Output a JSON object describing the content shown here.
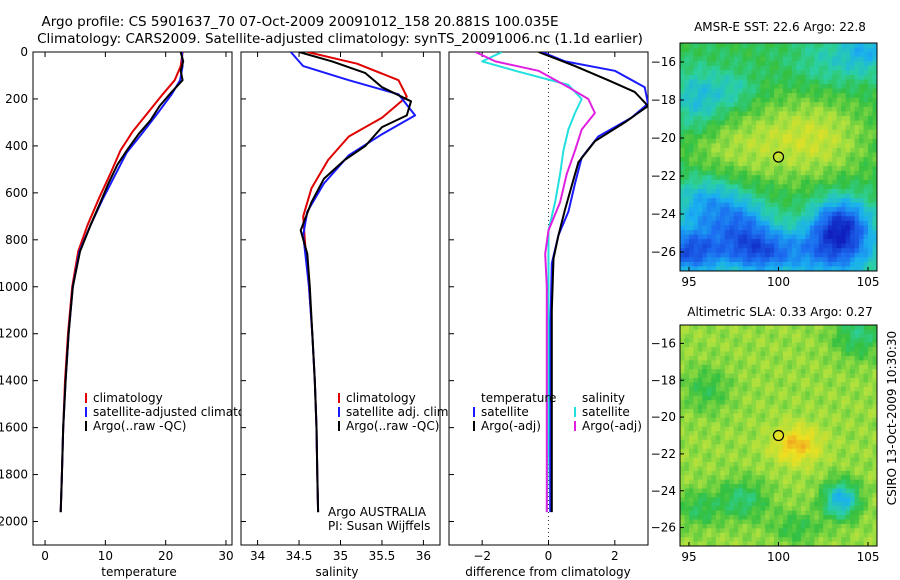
{
  "header": {
    "line1": "Argo profile: CS 5901637_70 07-Oct-2009 20091012_158 20.881S 100.035E",
    "line2": "Climatology: CARS2009. Satellite-adjusted climatology: synTS_20091006.nc (1.1d earlier)"
  },
  "side_label": "CSIRO 13-Oct-2009 10:30:30",
  "colors": {
    "climatology": "#e00000",
    "satellite": "#1a1aff",
    "argo": "#000000",
    "salinity_satellite": "#22e0e0",
    "salinity_argo": "#e020e0"
  },
  "chart_data": [
    {
      "type": "line",
      "id": "temperature",
      "xlabel": "temperature",
      "xlim": [
        -2,
        31
      ],
      "ylim": [
        0,
        2100
      ],
      "xticks": [
        0,
        10,
        20,
        30
      ],
      "yticks": [
        0,
        200,
        400,
        600,
        800,
        1000,
        1200,
        1400,
        1600,
        1800,
        2000
      ],
      "legend": [
        "climatology",
        "satellite-adjusted climatology",
        "Argo(..raw -QC)"
      ],
      "series": [
        {
          "name": "climatology",
          "color": "#e00000",
          "points": [
            [
              22.8,
              0
            ],
            [
              22.5,
              60
            ],
            [
              21.5,
              120
            ],
            [
              19.5,
              180
            ],
            [
              17,
              260
            ],
            [
              14.5,
              340
            ],
            [
              12.5,
              420
            ],
            [
              10.8,
              520
            ],
            [
              9,
              620
            ],
            [
              7,
              740
            ],
            [
              5.5,
              850
            ],
            [
              4.5,
              1000
            ],
            [
              3.8,
              1200
            ],
            [
              3.3,
              1400
            ],
            [
              3,
              1600
            ],
            [
              2.8,
              1800
            ],
            [
              2.6,
              1960
            ]
          ]
        },
        {
          "name": "satellite-adjusted climatology",
          "color": "#1a1aff",
          "points": [
            [
              22.7,
              0
            ],
            [
              22.8,
              60
            ],
            [
              22.4,
              120
            ],
            [
              21,
              180
            ],
            [
              18.7,
              260
            ],
            [
              16,
              350
            ],
            [
              13.5,
              430
            ],
            [
              11.5,
              530
            ],
            [
              9.5,
              630
            ],
            [
              7.5,
              740
            ],
            [
              5.7,
              850
            ],
            [
              4.6,
              1000
            ],
            [
              3.9,
              1200
            ],
            [
              3.4,
              1400
            ],
            [
              3,
              1600
            ],
            [
              2.8,
              1800
            ],
            [
              2.6,
              1960
            ]
          ]
        },
        {
          "name": "Argo(..raw -QC)",
          "color": "#000000",
          "points": [
            [
              22.5,
              0
            ],
            [
              22.9,
              40
            ],
            [
              22.5,
              80
            ],
            [
              22.8,
              120
            ],
            [
              21,
              170
            ],
            [
              19,
              230
            ],
            [
              17.5,
              290
            ],
            [
              15.5,
              350
            ],
            [
              13.8,
              410
            ],
            [
              12,
              480
            ],
            [
              10.5,
              560
            ],
            [
              9.2,
              640
            ],
            [
              7.5,
              740
            ],
            [
              5.8,
              850
            ],
            [
              4.6,
              1000
            ],
            [
              3.9,
              1200
            ],
            [
              3.4,
              1400
            ],
            [
              3,
              1600
            ],
            [
              2.8,
              1800
            ],
            [
              2.6,
              1960
            ]
          ]
        }
      ]
    },
    {
      "type": "line",
      "id": "salinity",
      "xlabel": "salinity",
      "xlim": [
        33.8,
        36.2
      ],
      "ylim": [
        0,
        2100
      ],
      "xticks": [
        34,
        34.5,
        35,
        35.5,
        36
      ],
      "yticks": [
        0,
        200,
        400,
        600,
        800,
        1000,
        1200,
        1400,
        1600,
        1800,
        2000
      ],
      "legend": [
        "climatology",
        "satellite adj. clim.",
        "Argo(..raw -QC)"
      ],
      "annotation": [
        "Argo AUSTRALIA",
        "PI: Susan Wijffels"
      ],
      "series": [
        {
          "name": "climatology",
          "color": "#e00000",
          "points": [
            [
              34.6,
              0
            ],
            [
              35.2,
              50
            ],
            [
              35.7,
              120
            ],
            [
              35.8,
              190
            ],
            [
              35.5,
              280
            ],
            [
              35.1,
              360
            ],
            [
              34.85,
              460
            ],
            [
              34.65,
              580
            ],
            [
              34.55,
              700
            ],
            [
              34.57,
              800
            ],
            [
              34.62,
              1000
            ],
            [
              34.66,
              1200
            ],
            [
              34.69,
              1400
            ],
            [
              34.71,
              1600
            ],
            [
              34.72,
              1800
            ],
            [
              34.73,
              1960
            ]
          ]
        },
        {
          "name": "satellite adj. clim.",
          "color": "#1a1aff",
          "points": [
            [
              34.4,
              0
            ],
            [
              34.55,
              60
            ],
            [
              35.1,
              120
            ],
            [
              35.7,
              180
            ],
            [
              35.9,
              270
            ],
            [
              35.5,
              350
            ],
            [
              35.1,
              440
            ],
            [
              34.8,
              560
            ],
            [
              34.6,
              680
            ],
            [
              34.55,
              780
            ],
            [
              34.62,
              1000
            ],
            [
              34.66,
              1200
            ],
            [
              34.69,
              1400
            ],
            [
              34.71,
              1600
            ],
            [
              34.72,
              1800
            ],
            [
              34.73,
              1960
            ]
          ]
        },
        {
          "name": "Argo(..raw -QC)",
          "color": "#000000",
          "points": [
            [
              34.5,
              0
            ],
            [
              34.9,
              40
            ],
            [
              35.3,
              90
            ],
            [
              35.5,
              150
            ],
            [
              35.85,
              210
            ],
            [
              35.8,
              270
            ],
            [
              35.5,
              320
            ],
            [
              35.3,
              400
            ],
            [
              35.05,
              460
            ],
            [
              34.8,
              540
            ],
            [
              34.65,
              640
            ],
            [
              34.52,
              760
            ],
            [
              34.6,
              860
            ],
            [
              34.63,
              1000
            ],
            [
              34.66,
              1200
            ],
            [
              34.69,
              1400
            ],
            [
              34.71,
              1600
            ],
            [
              34.72,
              1800
            ],
            [
              34.73,
              1960
            ]
          ]
        }
      ]
    },
    {
      "type": "line",
      "id": "difference",
      "xlabel": "difference from climatology",
      "xlim": [
        -3,
        3
      ],
      "ylim": [
        0,
        2100
      ],
      "xticks": [
        -2,
        0,
        2
      ],
      "yticks": [
        0,
        200,
        400,
        600,
        800,
        1000,
        1200,
        1400,
        1600,
        1800,
        2000
      ],
      "legend_temperature": {
        "title": "temperature",
        "satellite": "satellite",
        "argo": "Argo(-adj)"
      },
      "legend_salinity": {
        "title": "salinity",
        "satellite": "satellite",
        "argo": "Argo(-adj)"
      },
      "series": [
        {
          "name": "temperature satellite",
          "color": "#1a1aff",
          "points": [
            [
              -0.2,
              0
            ],
            [
              0.5,
              40
            ],
            [
              2,
              80
            ],
            [
              2.9,
              150
            ],
            [
              3,
              220
            ],
            [
              2.5,
              280
            ],
            [
              1.5,
              360
            ],
            [
              1,
              450
            ],
            [
              0.8,
              560
            ],
            [
              0.6,
              680
            ],
            [
              0.3,
              780
            ],
            [
              0.1,
              900
            ],
            [
              0.05,
              1200
            ],
            [
              0.05,
              1600
            ],
            [
              0.05,
              1960
            ]
          ]
        },
        {
          "name": "temperature Argo(-adj)",
          "color": "#000000",
          "points": [
            [
              -0.3,
              0
            ],
            [
              0.8,
              60
            ],
            [
              1.8,
              120
            ],
            [
              2.6,
              170
            ],
            [
              3,
              230
            ],
            [
              2.3,
              300
            ],
            [
              1.4,
              380
            ],
            [
              0.9,
              470
            ],
            [
              0.7,
              570
            ],
            [
              0.5,
              670
            ],
            [
              0.3,
              780
            ],
            [
              0.15,
              880
            ],
            [
              0.1,
              1100
            ],
            [
              0.1,
              1500
            ],
            [
              0.1,
              1960
            ]
          ]
        },
        {
          "name": "salinity satellite",
          "color": "#22e0e0",
          "points": [
            [
              -1.4,
              0
            ],
            [
              -2,
              40
            ],
            [
              -1,
              80
            ],
            [
              0.6,
              140
            ],
            [
              1,
              200
            ],
            [
              0.8,
              260
            ],
            [
              0.6,
              330
            ],
            [
              0.45,
              420
            ],
            [
              0.35,
              520
            ],
            [
              0.2,
              640
            ],
            [
              0,
              760
            ],
            [
              0,
              900
            ],
            [
              0,
              1200
            ],
            [
              0,
              1600
            ],
            [
              -0.05,
              1960
            ]
          ]
        },
        {
          "name": "salinity Argo(-adj)",
          "color": "#e020e0",
          "points": [
            [
              -2.2,
              0
            ],
            [
              -1.6,
              40
            ],
            [
              -0.3,
              80
            ],
            [
              0.6,
              150
            ],
            [
              1.2,
              200
            ],
            [
              1.4,
              260
            ],
            [
              1,
              330
            ],
            [
              0.8,
              420
            ],
            [
              0.55,
              520
            ],
            [
              0.35,
              640
            ],
            [
              0,
              760
            ],
            [
              -0.1,
              860
            ],
            [
              -0.05,
              1000
            ],
            [
              -0.05,
              1200
            ],
            [
              -0.05,
              1600
            ],
            [
              -0.05,
              1960
            ]
          ]
        }
      ]
    },
    {
      "type": "heatmap",
      "id": "sst_map",
      "title": "AMSR-E SST: 22.6 Argo: 22.8",
      "xlim": [
        94.5,
        105.5
      ],
      "ylim": [
        -27,
        -15
      ],
      "xticks": [
        95,
        100,
        105
      ],
      "yticks": [
        -16,
        -18,
        -20,
        -22,
        -24,
        -26
      ],
      "marker": [
        100,
        -21
      ],
      "stops": [
        [
          "#1020c0",
          0
        ],
        [
          "#1c6cf0",
          0.2
        ],
        [
          "#1ab0f0",
          0.35
        ],
        [
          "#2cd0a0",
          0.5
        ],
        [
          "#34c040",
          0.62
        ],
        [
          "#a8e040",
          0.75
        ],
        [
          "#f0e020",
          0.88
        ],
        [
          "#f0a020",
          1
        ]
      ],
      "blobs": [
        [
          102,
          -20,
          3,
          2.2,
          0.2
        ],
        [
          98,
          -20.5,
          2.6,
          2,
          0.12
        ],
        [
          96,
          -21,
          1.6,
          1.8,
          0.05
        ],
        [
          95.5,
          -18,
          1.4,
          1.6,
          -0.2
        ],
        [
          97.5,
          -17.5,
          1.3,
          1.1,
          -0.12
        ],
        [
          103,
          -16,
          2.3,
          1.4,
          -0.12
        ],
        [
          105,
          -15.3,
          1.4,
          1.2,
          -0.2
        ],
        [
          96,
          -23.5,
          1.8,
          1.6,
          -0.28
        ],
        [
          98,
          -24.5,
          1.6,
          1.4,
          -0.28
        ],
        [
          95,
          -26,
          2,
          1.2,
          -0.45
        ],
        [
          99,
          -26,
          2,
          1.2,
          -0.4
        ],
        [
          103.5,
          -24.5,
          1.6,
          1.4,
          -0.45
        ],
        [
          103,
          -26,
          2.5,
          1.5,
          -0.35
        ]
      ]
    },
    {
      "type": "heatmap",
      "id": "sla_map",
      "title": "Altimetric SLA: 0.33 Argo: 0.27",
      "xlim": [
        94.5,
        105.5
      ],
      "ylim": [
        -27,
        -15
      ],
      "xticks": [
        95,
        100,
        105
      ],
      "yticks": [
        -16,
        -18,
        -20,
        -22,
        -24,
        -26
      ],
      "marker": [
        100,
        -21
      ],
      "stops": [
        [
          "#1020c0",
          0
        ],
        [
          "#1c6cf0",
          0.2
        ],
        [
          "#1ab0f0",
          0.35
        ],
        [
          "#2cd0a0",
          0.5
        ],
        [
          "#34c040",
          0.62
        ],
        [
          "#a8e040",
          0.75
        ],
        [
          "#f0e020",
          0.88
        ],
        [
          "#f0a020",
          1
        ]
      ],
      "blobs": [
        [
          101,
          -21.5,
          1.3,
          1,
          0.22
        ],
        [
          96,
          -18.5,
          1.3,
          1.2,
          -0.12
        ],
        [
          104.5,
          -15.5,
          1.4,
          1.3,
          -0.18
        ],
        [
          103.5,
          -24.5,
          1,
          1,
          -0.38
        ],
        [
          98,
          -24.5,
          1.4,
          1.1,
          -0.18
        ],
        [
          95.5,
          -25,
          1.2,
          1,
          -0.14
        ],
        [
          101,
          -26,
          1.4,
          0.9,
          -0.12
        ]
      ]
    }
  ]
}
